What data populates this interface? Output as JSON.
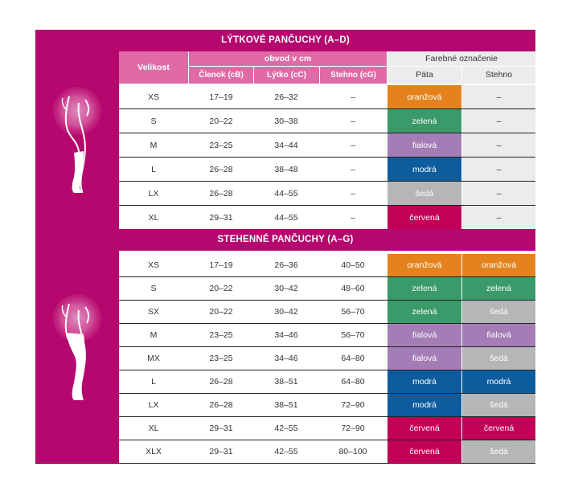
{
  "colors": {
    "magenta": "#b5086e",
    "pink_header": "#e06aa6",
    "light_gray": "#ececec",
    "oranzova": "#e4831d",
    "zelena": "#3a9a6a",
    "fialova": "#a47db6",
    "modra": "#0d5d9e",
    "seda": "#b4b6b8",
    "cervena": "#c20058"
  },
  "headers": {
    "velikost": "Velikost",
    "obvod": "obvod v cm",
    "clenok": "Členok (cB)",
    "lytko": "Lýtko (cC)",
    "stehno_cg": "Stehno (cG)",
    "farebne": "Farebné označenie",
    "pata": "Päta",
    "stehno": "Stehno"
  },
  "section1": {
    "title": "LÝTKOVÉ PANČUCHY (A–D)",
    "icon": "knee-high-stocking-leg-icon",
    "rows": [
      {
        "size": "XS",
        "clenok": "17–19",
        "lytko": "26–32",
        "stehno": "–",
        "pata": "oranžová",
        "pata_color": "#e4831d",
        "stehno_color_label": "–",
        "stehno_color": ""
      },
      {
        "size": "S",
        "clenok": "20–22",
        "lytko": "30–38",
        "stehno": "–",
        "pata": "zelená",
        "pata_color": "#3a9a6a",
        "stehno_color_label": "–",
        "stehno_color": ""
      },
      {
        "size": "M",
        "clenok": "23–25",
        "lytko": "34–44",
        "stehno": "–",
        "pata": "fialová",
        "pata_color": "#a47db6",
        "stehno_color_label": "–",
        "stehno_color": ""
      },
      {
        "size": "L",
        "clenok": "26–28",
        "lytko": "38–48",
        "stehno": "–",
        "pata": "modrá",
        "pata_color": "#0d5d9e",
        "stehno_color_label": "–",
        "stehno_color": ""
      },
      {
        "size": "LX",
        "clenok": "26–28",
        "lytko": "44–55",
        "stehno": "–",
        "pata": "šedá",
        "pata_color": "#b4b6b8",
        "stehno_color_label": "–",
        "stehno_color": ""
      },
      {
        "size": "XL",
        "clenok": "29–31",
        "lytko": "44–55",
        "stehno": "–",
        "pata": "červená",
        "pata_color": "#c20058",
        "stehno_color_label": "–",
        "stehno_color": ""
      }
    ]
  },
  "section2": {
    "title": "STEHENNÉ PANČUCHY (A–G)",
    "icon": "thigh-high-stocking-leg-icon",
    "rows": [
      {
        "size": "XS",
        "clenok": "17–19",
        "lytko": "26–36",
        "stehno": "40–50",
        "pata": "oranžová",
        "pata_color": "#e4831d",
        "stehno_color_label": "oranžová",
        "stehno_color": "#e4831d"
      },
      {
        "size": "S",
        "clenok": "20–22",
        "lytko": "30–42",
        "stehno": "48–60",
        "pata": "zelená",
        "pata_color": "#3a9a6a",
        "stehno_color_label": "zelená",
        "stehno_color": "#3a9a6a"
      },
      {
        "size": "SX",
        "clenok": "20–22",
        "lytko": "30–42",
        "stehno": "56–70",
        "pata": "zelená",
        "pata_color": "#3a9a6a",
        "stehno_color_label": "šedá",
        "stehno_color": "#b4b6b8"
      },
      {
        "size": "M",
        "clenok": "23–25",
        "lytko": "34–46",
        "stehno": "56–70",
        "pata": "fialová",
        "pata_color": "#a47db6",
        "stehno_color_label": "fialová",
        "stehno_color": "#a47db6"
      },
      {
        "size": "MX",
        "clenok": "23–25",
        "lytko": "34–46",
        "stehno": "64–80",
        "pata": "fialová",
        "pata_color": "#a47db6",
        "stehno_color_label": "šedá",
        "stehno_color": "#b4b6b8"
      },
      {
        "size": "L",
        "clenok": "26–28",
        "lytko": "38–51",
        "stehno": "64–80",
        "pata": "modrá",
        "pata_color": "#0d5d9e",
        "stehno_color_label": "modrá",
        "stehno_color": "#0d5d9e"
      },
      {
        "size": "LX",
        "clenok": "26–28",
        "lytko": "38–51",
        "stehno": "72–90",
        "pata": "modrá",
        "pata_color": "#0d5d9e",
        "stehno_color_label": "šedá",
        "stehno_color": "#b4b6b8"
      },
      {
        "size": "XL",
        "clenok": "29–31",
        "lytko": "42–55",
        "stehno": "72–90",
        "pata": "červená",
        "pata_color": "#c20058",
        "stehno_color_label": "červená",
        "stehno_color": "#c20058"
      },
      {
        "size": "XLX",
        "clenok": "29–31",
        "lytko": "42–55",
        "stehno": "80–100",
        "pata": "červená",
        "pata_color": "#c20058",
        "stehno_color_label": "šedá",
        "stehno_color": "#b4b6b8"
      }
    ]
  }
}
